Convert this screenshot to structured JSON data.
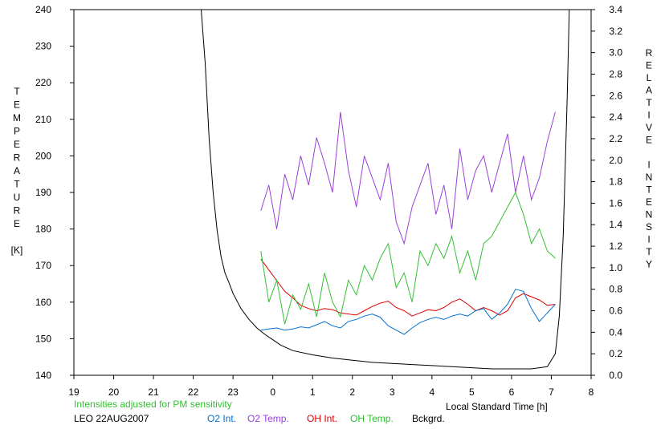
{
  "chart_data": {
    "type": "line",
    "title": "",
    "xlabel": "Local Standard Time [h]",
    "ylabel_left": [
      "T",
      "E",
      "M",
      "P",
      "E",
      "R",
      "A",
      "T",
      "U",
      "R",
      "E",
      "",
      "[K]"
    ],
    "ylabel_right": [
      "R",
      "E",
      "L",
      "A",
      "T",
      "I",
      "V",
      "E",
      "",
      "I",
      "N",
      "T",
      "E",
      "N",
      "S",
      "I",
      "T",
      "Y"
    ],
    "x_ticks": [
      "19",
      "20",
      "21",
      "22",
      "23",
      "0",
      "1",
      "2",
      "3",
      "4",
      "5",
      "6",
      "7",
      "8"
    ],
    "y_left_ticks": [
      "140",
      "150",
      "160",
      "170",
      "180",
      "190",
      "200",
      "210",
      "220",
      "230",
      "240"
    ],
    "y_right_ticks": [
      "0.0",
      "0.2",
      "0.4",
      "0.6",
      "0.8",
      "1.0",
      "1.2",
      "1.4",
      "1.6",
      "1.8",
      "2.0",
      "2.2",
      "2.4",
      "2.6",
      "2.8",
      "3.0",
      "3.2",
      "3.4"
    ],
    "xlim": [
      19,
      32
    ],
    "y_left_lim": [
      140,
      240
    ],
    "y_right_lim": [
      0,
      3.4
    ],
    "grid": false,
    "note": "Intensities adjusted for PM sensitivity",
    "station": "LEO 22AUG2007",
    "legend": [
      {
        "name": "O2 Int.",
        "color": "#0070d0"
      },
      {
        "name": "O2 Temp.",
        "color": "#9b40d8"
      },
      {
        "name": "OH Int.",
        "color": "#dd0000"
      },
      {
        "name": "OH Temp.",
        "color": "#33c033"
      },
      {
        "name": "Bckgrd.",
        "color": "#000000"
      }
    ],
    "series": [
      {
        "name": "Bckgrd.",
        "color": "#000000",
        "axis": "right",
        "x": [
          22.2,
          22.3,
          22.4,
          22.5,
          22.6,
          22.7,
          22.8,
          22.9,
          23.0,
          23.2,
          23.4,
          23.6,
          23.8,
          24.0,
          24.2,
          24.5,
          25.0,
          25.5,
          26.0,
          26.5,
          27.0,
          27.5,
          28.0,
          28.5,
          29.0,
          29.5,
          30.0,
          30.5,
          30.9,
          31.1,
          31.2,
          31.3,
          31.4,
          31.45
        ],
        "y": [
          3.5,
          2.9,
          2.2,
          1.7,
          1.35,
          1.1,
          0.95,
          0.86,
          0.76,
          0.62,
          0.52,
          0.44,
          0.38,
          0.33,
          0.28,
          0.23,
          0.19,
          0.16,
          0.14,
          0.12,
          0.11,
          0.1,
          0.09,
          0.08,
          0.07,
          0.06,
          0.06,
          0.06,
          0.08,
          0.2,
          0.55,
          1.3,
          2.6,
          3.4
        ]
      },
      {
        "name": "OH Int.",
        "color": "#dd0000",
        "axis": "right",
        "x": [
          23.7,
          23.9,
          24.1,
          24.3,
          24.5,
          24.7,
          24.9,
          25.1,
          25.3,
          25.5,
          25.7,
          25.9,
          26.1,
          26.3,
          26.5,
          26.7,
          26.9,
          27.1,
          27.3,
          27.5,
          27.7,
          27.9,
          28.1,
          28.3,
          28.5,
          28.7,
          28.9,
          29.1,
          29.3,
          29.5,
          29.7,
          29.9,
          30.1,
          30.3,
          30.5,
          30.7,
          30.9,
          31.1
        ],
        "y": [
          1.08,
          0.98,
          0.88,
          0.78,
          0.72,
          0.65,
          0.62,
          0.6,
          0.62,
          0.61,
          0.58,
          0.57,
          0.56,
          0.6,
          0.64,
          0.67,
          0.69,
          0.63,
          0.6,
          0.55,
          0.58,
          0.61,
          0.6,
          0.63,
          0.68,
          0.71,
          0.66,
          0.6,
          0.63,
          0.6,
          0.56,
          0.6,
          0.72,
          0.76,
          0.73,
          0.7,
          0.65,
          0.66
        ]
      },
      {
        "name": "O2 Int.",
        "color": "#0070d0",
        "axis": "right",
        "x": [
          23.7,
          23.9,
          24.1,
          24.3,
          24.5,
          24.7,
          24.9,
          25.1,
          25.3,
          25.5,
          25.7,
          25.9,
          26.1,
          26.3,
          26.5,
          26.7,
          26.9,
          27.1,
          27.3,
          27.5,
          27.7,
          27.9,
          28.1,
          28.3,
          28.5,
          28.7,
          28.9,
          29.1,
          29.3,
          29.5,
          29.7,
          29.9,
          30.1,
          30.3,
          30.5,
          30.7,
          30.9,
          31.1
        ],
        "y": [
          0.42,
          0.43,
          0.44,
          0.42,
          0.43,
          0.45,
          0.44,
          0.47,
          0.5,
          0.46,
          0.44,
          0.5,
          0.52,
          0.55,
          0.57,
          0.54,
          0.46,
          0.42,
          0.38,
          0.44,
          0.49,
          0.52,
          0.54,
          0.52,
          0.55,
          0.57,
          0.55,
          0.6,
          0.62,
          0.52,
          0.58,
          0.66,
          0.8,
          0.78,
          0.62,
          0.5,
          0.58,
          0.66
        ]
      },
      {
        "name": "O2 Temp.",
        "color": "#9b40d8",
        "axis": "left",
        "x": [
          23.7,
          23.9,
          24.1,
          24.3,
          24.5,
          24.7,
          24.9,
          25.1,
          25.3,
          25.5,
          25.7,
          25.9,
          26.1,
          26.3,
          26.5,
          26.7,
          26.9,
          27.1,
          27.3,
          27.5,
          27.7,
          27.9,
          28.1,
          28.3,
          28.5,
          28.7,
          28.9,
          29.1,
          29.3,
          29.5,
          29.7,
          29.9,
          30.1,
          30.3,
          30.5,
          30.7,
          30.9,
          31.1
        ],
        "y": [
          185,
          192,
          180,
          195,
          188,
          200,
          192,
          205,
          198,
          190,
          212,
          196,
          186,
          200,
          194,
          188,
          198,
          182,
          176,
          186,
          192,
          198,
          184,
          192,
          180,
          202,
          188,
          196,
          200,
          190,
          198,
          206,
          190,
          200,
          188,
          194,
          204,
          212
        ]
      },
      {
        "name": "OH Temp.",
        "color": "#33c033",
        "axis": "left",
        "x": [
          23.7,
          23.9,
          24.1,
          24.3,
          24.5,
          24.7,
          24.9,
          25.1,
          25.3,
          25.5,
          25.7,
          25.9,
          26.1,
          26.3,
          26.5,
          26.7,
          26.9,
          27.1,
          27.3,
          27.5,
          27.7,
          27.9,
          28.1,
          28.3,
          28.5,
          28.7,
          28.9,
          29.1,
          29.3,
          29.5,
          29.7,
          29.9,
          30.1,
          30.3,
          30.5,
          30.7,
          30.9,
          31.1
        ],
        "y": [
          174,
          160,
          166,
          154,
          162,
          158,
          165,
          156,
          168,
          160,
          156,
          166,
          162,
          170,
          166,
          172,
          176,
          164,
          168,
          160,
          174,
          170,
          176,
          172,
          178,
          168,
          174,
          166,
          176,
          178,
          182,
          186,
          190,
          184,
          176,
          180,
          174,
          172
        ]
      }
    ]
  }
}
